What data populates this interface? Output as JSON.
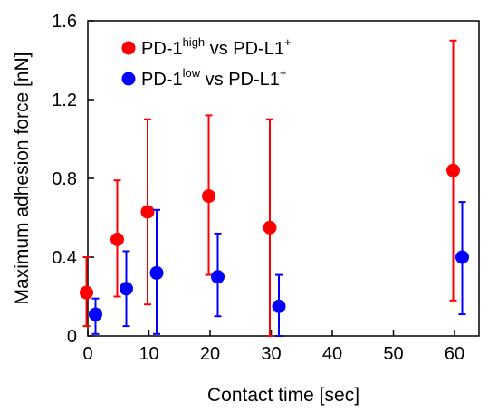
{
  "chart_data": {
    "type": "scatter",
    "xlabel": "Contact time [sec]",
    "ylabel": "Maximum adhesion force [nN]",
    "x_tick_labels": [
      "0",
      "10",
      "20",
      "30",
      "40",
      "50",
      "60"
    ],
    "y_tick_labels": [
      "0",
      "0.4",
      "0.8",
      "1.2",
      "1.6"
    ],
    "y_ticks": [
      0,
      0.4,
      0.8,
      1.2,
      1.6
    ],
    "ylim": [
      0,
      1.6
    ],
    "grid": false,
    "legend_position": "top-left",
    "series": [
      {
        "name_main": "PD-1",
        "name_sup": "high",
        "name_rest": " vs PD-L1",
        "name_sup2": "+",
        "color": "#ff0000",
        "points": [
          {
            "x_label": "0",
            "y": 0.22,
            "err_low": 0.05,
            "err_high": 0.4
          },
          {
            "x_label": "5",
            "y": 0.49,
            "err_low": 0.2,
            "err_high": 0.79
          },
          {
            "x_label": "10",
            "y": 0.63,
            "err_low": 0.16,
            "err_high": 1.1
          },
          {
            "x_label": "20",
            "y": 0.71,
            "err_low": 0.31,
            "err_high": 1.12
          },
          {
            "x_label": "30",
            "y": 0.55,
            "err_low": 0.0,
            "err_high": 1.1
          },
          {
            "x_label": "60",
            "y": 0.84,
            "err_low": 0.18,
            "err_high": 1.5
          }
        ]
      },
      {
        "name_main": "PD-1",
        "name_sup": "low",
        "name_rest": " vs PD-L1",
        "name_sup2": "+",
        "color": "#0000ff",
        "points": [
          {
            "x_label": "0",
            "y": 0.11,
            "err_low": 0.01,
            "err_high": 0.19
          },
          {
            "x_label": "5",
            "y": 0.24,
            "err_low": 0.05,
            "err_high": 0.43
          },
          {
            "x_label": "10",
            "y": 0.32,
            "err_low": 0.01,
            "err_high": 0.64
          },
          {
            "x_label": "20",
            "y": 0.3,
            "err_low": 0.1,
            "err_high": 0.52
          },
          {
            "x_label": "30",
            "y": 0.15,
            "err_low": 0.0,
            "err_high": 0.31
          },
          {
            "x_label": "60",
            "y": 0.4,
            "err_low": 0.11,
            "err_high": 0.68
          }
        ]
      }
    ]
  }
}
